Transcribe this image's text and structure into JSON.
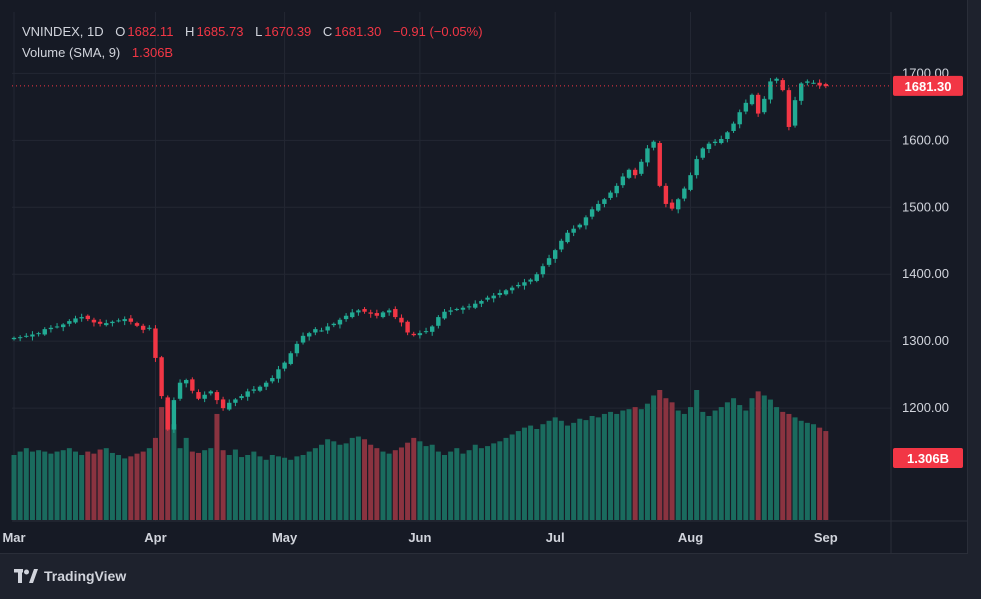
{
  "legend": {
    "symbol": "VNINDEX, 1D",
    "open_label": "O",
    "open": "1682.11",
    "high_label": "H",
    "high": "1685.73",
    "low_label": "L",
    "low": "1670.39",
    "close_label": "C",
    "close": "1681.30",
    "change": "−0.91 (−0.05%)",
    "volume_label": "Volume (SMA, 9)",
    "volume_value": "1.306B"
  },
  "badges": {
    "price": "1681.30",
    "volume": "1.306B"
  },
  "branding": {
    "name": "TradingView"
  },
  "colors": {
    "up": "#22ab94",
    "down": "#f23645",
    "up_volume": "#1a6b5e",
    "down_volume": "#8a3340"
  },
  "chart_data": {
    "type": "candlestick",
    "title": "VNINDEX, 1D",
    "y_ticks": [
      "1700.00",
      "1600.00",
      "1500.00",
      "1400.00",
      "1300.00",
      "1200.00"
    ],
    "y_tick_values": [
      1700,
      1600,
      1500,
      1400,
      1300,
      1200
    ],
    "ylim": [
      1130,
      1720
    ],
    "x_tick_labels": [
      "Mar",
      "Apr",
      "May",
      "Jun",
      "Jul",
      "Aug",
      "Sep"
    ],
    "x_tick_index": [
      0,
      23,
      44,
      66,
      88,
      110,
      132
    ],
    "last_price": 1681.3,
    "volume_ylim": [
      0,
      1.9
    ],
    "series_close": [
      1305,
      1306,
      1308,
      1310,
      1312,
      1318,
      1320,
      1322,
      1325,
      1330,
      1334,
      1336,
      1333,
      1328,
      1326,
      1327,
      1329,
      1331,
      1333,
      1329,
      1323,
      1317,
      1320,
      1275,
      1218,
      1168,
      1212,
      1238,
      1242,
      1226,
      1214,
      1220,
      1225,
      1212,
      1200,
      1208,
      1213,
      1218,
      1225,
      1228,
      1232,
      1238,
      1245,
      1258,
      1268,
      1282,
      1296,
      1308,
      1312,
      1318,
      1316,
      1322,
      1326,
      1332,
      1338,
      1343,
      1346,
      1344,
      1341,
      1338,
      1343,
      1346,
      1336,
      1328,
      1313,
      1309,
      1312,
      1315,
      1322,
      1336,
      1344,
      1346,
      1348,
      1350,
      1352,
      1356,
      1360,
      1365,
      1368,
      1372,
      1376,
      1380,
      1384,
      1388,
      1392,
      1400,
      1412,
      1424,
      1436,
      1450,
      1462,
      1468,
      1474,
      1485,
      1497,
      1505,
      1512,
      1522,
      1532,
      1546,
      1556,
      1548,
      1568,
      1588,
      1598,
      1532,
      1505,
      1498,
      1512,
      1528,
      1548,
      1572,
      1588,
      1595,
      1598,
      1602,
      1612,
      1625,
      1642,
      1656,
      1668,
      1640,
      1662,
      1688,
      1692,
      1675,
      1620,
      1660,
      1685,
      1688,
      1686,
      1682,
      1681
    ],
    "series_volume": [
      0.95,
      1.0,
      1.05,
      1.0,
      1.02,
      1.0,
      0.97,
      1.0,
      1.02,
      1.05,
      1.0,
      0.95,
      1.0,
      0.97,
      1.03,
      1.05,
      0.98,
      0.95,
      0.9,
      0.93,
      0.97,
      1.0,
      1.05,
      1.2,
      1.65,
      1.75,
      1.4,
      1.05,
      1.2,
      1.0,
      0.98,
      1.02,
      1.05,
      1.55,
      1.02,
      0.95,
      1.03,
      0.92,
      0.95,
      1.0,
      0.93,
      0.88,
      0.95,
      0.93,
      0.91,
      0.88,
      0.93,
      0.95,
      1.0,
      1.05,
      1.1,
      1.18,
      1.15,
      1.1,
      1.12,
      1.2,
      1.22,
      1.18,
      1.1,
      1.05,
      1.0,
      0.97,
      1.02,
      1.06,
      1.13,
      1.2,
      1.15,
      1.08,
      1.1,
      1.0,
      0.95,
      1.0,
      1.05,
      0.97,
      1.02,
      1.1,
      1.05,
      1.08,
      1.12,
      1.15,
      1.2,
      1.25,
      1.3,
      1.35,
      1.38,
      1.33,
      1.4,
      1.45,
      1.5,
      1.45,
      1.38,
      1.42,
      1.48,
      1.46,
      1.52,
      1.5,
      1.55,
      1.58,
      1.55,
      1.6,
      1.62,
      1.65,
      1.62,
      1.7,
      1.82,
      1.9,
      1.78,
      1.72,
      1.6,
      1.55,
      1.65,
      1.9,
      1.58,
      1.52,
      1.6,
      1.65,
      1.72,
      1.78,
      1.68,
      1.6,
      1.78,
      1.88,
      1.82,
      1.76,
      1.65,
      1.58,
      1.55,
      1.5,
      1.45,
      1.42,
      1.4,
      1.35,
      1.3
    ]
  }
}
